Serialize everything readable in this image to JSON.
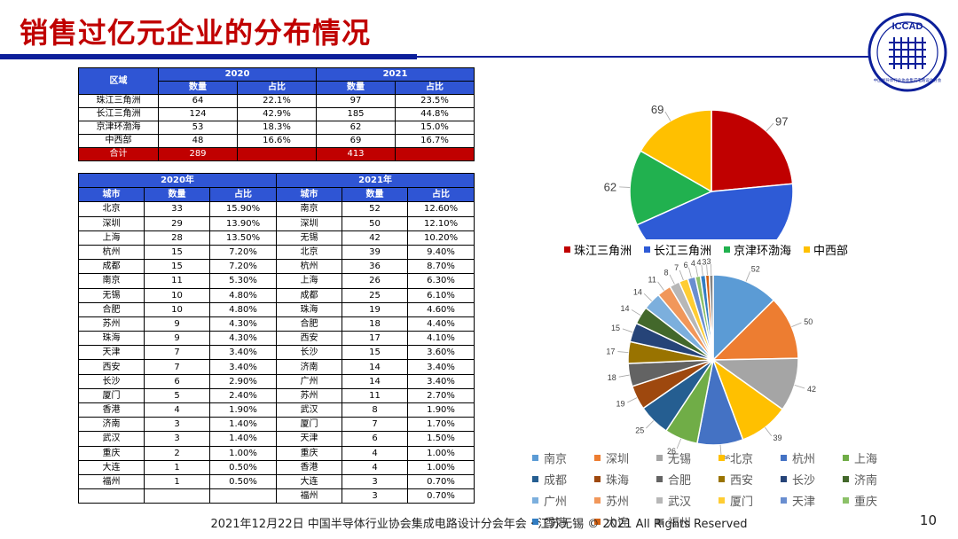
{
  "title": "销售过亿元企业的分布情况",
  "logo_text": "ICCAD",
  "logo_subtext": "中国半导体行业协会集成电路设计分会",
  "footer": "2021年12月22日 中国半导体行业协会集成电路设计分会年会 · 江苏无锡 © 2021 All Rights Reserved",
  "page_number": "10",
  "colors": {
    "title": "#c00000",
    "header_bg": "#2f55d4",
    "total_bg": "#c00000",
    "rule": "#0c1f9a"
  },
  "region_table": {
    "col_region": "区域",
    "year_a": "2020",
    "year_b": "2021",
    "col_count": "数量",
    "col_share": "占比",
    "rows": [
      {
        "region": "珠江三角洲",
        "c2020": "64",
        "s2020": "22.1%",
        "c2021": "97",
        "s2021": "23.5%"
      },
      {
        "region": "长江三角洲",
        "c2020": "124",
        "s2020": "42.9%",
        "c2021": "185",
        "s2021": "44.8%"
      },
      {
        "region": "京津环渤海",
        "c2020": "53",
        "s2020": "18.3%",
        "c2021": "62",
        "s2021": "15.0%"
      },
      {
        "region": "中西部",
        "c2020": "48",
        "s2020": "16.6%",
        "c2021": "69",
        "s2021": "16.7%"
      }
    ],
    "total": {
      "label": "合计",
      "c2020": "289",
      "c2021": "413"
    }
  },
  "city_table": {
    "year_a": "2020年",
    "year_b": "2021年",
    "col_city": "城市",
    "col_count": "数量",
    "col_share": "占比",
    "rows": [
      {
        "a_city": "北京",
        "a_count": "33",
        "a_share": "15.90%",
        "b_city": "南京",
        "b_count": "52",
        "b_share": "12.60%"
      },
      {
        "a_city": "深圳",
        "a_count": "29",
        "a_share": "13.90%",
        "b_city": "深圳",
        "b_count": "50",
        "b_share": "12.10%"
      },
      {
        "a_city": "上海",
        "a_count": "28",
        "a_share": "13.50%",
        "b_city": "无锡",
        "b_count": "42",
        "b_share": "10.20%"
      },
      {
        "a_city": "杭州",
        "a_count": "15",
        "a_share": "7.20%",
        "b_city": "北京",
        "b_count": "39",
        "b_share": "9.40%"
      },
      {
        "a_city": "成都",
        "a_count": "15",
        "a_share": "7.20%",
        "b_city": "杭州",
        "b_count": "36",
        "b_share": "8.70%"
      },
      {
        "a_city": "南京",
        "a_count": "11",
        "a_share": "5.30%",
        "b_city": "上海",
        "b_count": "26",
        "b_share": "6.30%"
      },
      {
        "a_city": "无锡",
        "a_count": "10",
        "a_share": "4.80%",
        "b_city": "成都",
        "b_count": "25",
        "b_share": "6.10%"
      },
      {
        "a_city": "合肥",
        "a_count": "10",
        "a_share": "4.80%",
        "b_city": "珠海",
        "b_count": "19",
        "b_share": "4.60%"
      },
      {
        "a_city": "苏州",
        "a_count": "9",
        "a_share": "4.30%",
        "b_city": "合肥",
        "b_count": "18",
        "b_share": "4.40%"
      },
      {
        "a_city": "珠海",
        "a_count": "9",
        "a_share": "4.30%",
        "b_city": "西安",
        "b_count": "17",
        "b_share": "4.10%"
      },
      {
        "a_city": "天津",
        "a_count": "7",
        "a_share": "3.40%",
        "b_city": "长沙",
        "b_count": "15",
        "b_share": "3.60%"
      },
      {
        "a_city": "西安",
        "a_count": "7",
        "a_share": "3.40%",
        "b_city": "济南",
        "b_count": "14",
        "b_share": "3.40%"
      },
      {
        "a_city": "长沙",
        "a_count": "6",
        "a_share": "2.90%",
        "b_city": "广州",
        "b_count": "14",
        "b_share": "3.40%"
      },
      {
        "a_city": "厦门",
        "a_count": "5",
        "a_share": "2.40%",
        "b_city": "苏州",
        "b_count": "11",
        "b_share": "2.70%"
      },
      {
        "a_city": "香港",
        "a_count": "4",
        "a_share": "1.90%",
        "b_city": "武汉",
        "b_count": "8",
        "b_share": "1.90%"
      },
      {
        "a_city": "济南",
        "a_count": "3",
        "a_share": "1.40%",
        "b_city": "厦门",
        "b_count": "7",
        "b_share": "1.70%"
      },
      {
        "a_city": "武汉",
        "a_count": "3",
        "a_share": "1.40%",
        "b_city": "天津",
        "b_count": "6",
        "b_share": "1.50%"
      },
      {
        "a_city": "重庆",
        "a_count": "2",
        "a_share": "1.00%",
        "b_city": "重庆",
        "b_count": "4",
        "b_share": "1.00%"
      },
      {
        "a_city": "大连",
        "a_count": "1",
        "a_share": "0.50%",
        "b_city": "香港",
        "b_count": "4",
        "b_share": "1.00%"
      },
      {
        "a_city": "福州",
        "a_count": "1",
        "a_share": "0.50%",
        "b_city": "大连",
        "b_count": "3",
        "b_share": "0.70%"
      },
      {
        "a_city": "",
        "a_count": "",
        "a_share": "",
        "b_city": "福州",
        "b_count": "3",
        "b_share": "0.70%"
      }
    ]
  },
  "chart_data": [
    {
      "type": "pie",
      "categories": [
        "珠江三角洲",
        "长江三角洲",
        "京津环渤海",
        "中西部"
      ],
      "values": [
        97,
        185,
        62,
        69
      ],
      "colors": [
        "#c00000",
        "#2e5bd6",
        "#21b14f",
        "#ffc000"
      ],
      "legend_position": "bottom"
    },
    {
      "type": "pie",
      "categories": [
        "南京",
        "深圳",
        "无锡",
        "北京",
        "杭州",
        "上海",
        "成都",
        "珠海",
        "合肥",
        "西安",
        "长沙",
        "济南",
        "广州",
        "苏州",
        "武汉",
        "厦门",
        "天津",
        "重庆",
        "香港",
        "大连",
        "福州"
      ],
      "values": [
        52,
        50,
        42,
        39,
        36,
        26,
        25,
        19,
        18,
        17,
        15,
        14,
        14,
        11,
        8,
        7,
        6,
        4,
        4,
        3,
        3
      ],
      "colors": [
        "#5b9bd5",
        "#ed7d31",
        "#a5a5a5",
        "#ffc000",
        "#4472c4",
        "#70ad47",
        "#255e91",
        "#9e480e",
        "#636363",
        "#997300",
        "#264478",
        "#43682b",
        "#7cafdd",
        "#f1975a",
        "#b7b7b7",
        "#ffcd33",
        "#698ed0",
        "#8cc168",
        "#327dc2",
        "#d26012",
        "#848484"
      ],
      "legend_position": "bottom"
    }
  ]
}
